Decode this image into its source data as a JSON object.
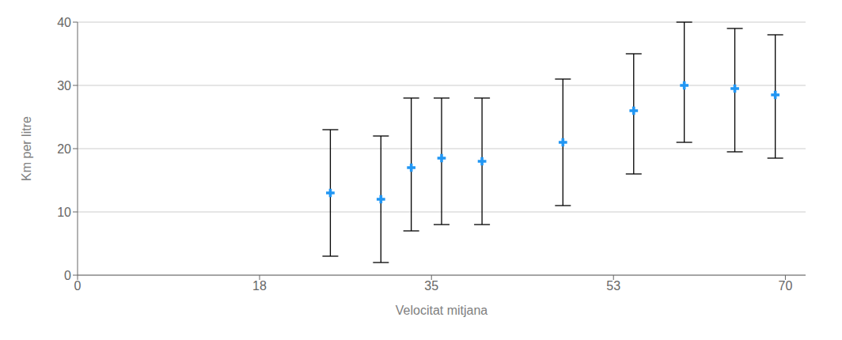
{
  "chart_data": {
    "type": "scatter",
    "xlabel": "Velocitat mitjana",
    "ylabel": "Km per litre",
    "x": [
      25,
      30,
      33,
      36,
      40,
      48,
      55,
      60,
      65,
      69
    ],
    "y": [
      13,
      12,
      17,
      18.5,
      18,
      21,
      26,
      30,
      29.5,
      28.5
    ],
    "yerr_upper": [
      10,
      10,
      11,
      9.5,
      10,
      10,
      9,
      10,
      9.5,
      9.5
    ],
    "yerr_lower": [
      10,
      10,
      10,
      10.5,
      10,
      10,
      10,
      9,
      10,
      10
    ],
    "color": "#2196F3",
    "marker": "plus",
    "xlim": [
      0,
      72
    ],
    "ylim": [
      0,
      40
    ],
    "xticks": [
      0,
      18,
      35,
      53,
      70
    ],
    "yticks": [
      0,
      10,
      20,
      30,
      40
    ],
    "grid": "y"
  }
}
